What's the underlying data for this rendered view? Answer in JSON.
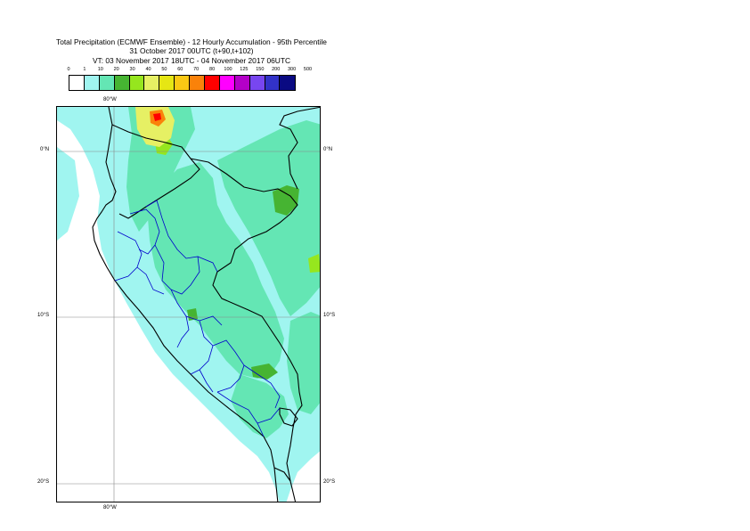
{
  "title": {
    "line1": "Total Precipitation (ECMWF Ensemble) - 12 Hourly Accumulation - 95th Percentile",
    "line2": "31 October 2017 00UTC (t+90,t+102)",
    "line3": "VT: 03 November 2017 18UTC - 04 November 2017 06UTC"
  },
  "legend": {
    "thresholds": [
      "0",
      "1",
      "10",
      "20",
      "30",
      "40",
      "50",
      "60",
      "70",
      "80",
      "100",
      "125",
      "150",
      "200",
      "300",
      "500"
    ],
    "colors": [
      "#ffffff",
      "#a0f5f0",
      "#64e6b4",
      "#46b432",
      "#96e61e",
      "#e6f064",
      "#e6e614",
      "#fac814",
      "#fa820a",
      "#ff0000",
      "#ff00ff",
      "#b400c8",
      "#7846f0",
      "#3232c8",
      "#0a0a82"
    ]
  },
  "map": {
    "lon_top": "80°W",
    "lon_bottom": "80°W",
    "lat_left_0": "0°N",
    "lat_right_0": "0°N",
    "lat_left_10": "10°S",
    "lat_right_10": "10°S",
    "lat_left_20": "20°S",
    "lat_right_20": "20°S",
    "colors": {
      "light": "#a0f5f0",
      "medium": "#64e6b4",
      "green": "#46b432",
      "lime": "#96e61e",
      "yellow": "#e6f064",
      "orange": "#fa820a",
      "red": "#ff0000",
      "coast": "#000000",
      "regions": "#0000cc",
      "grid": "#888888"
    }
  }
}
